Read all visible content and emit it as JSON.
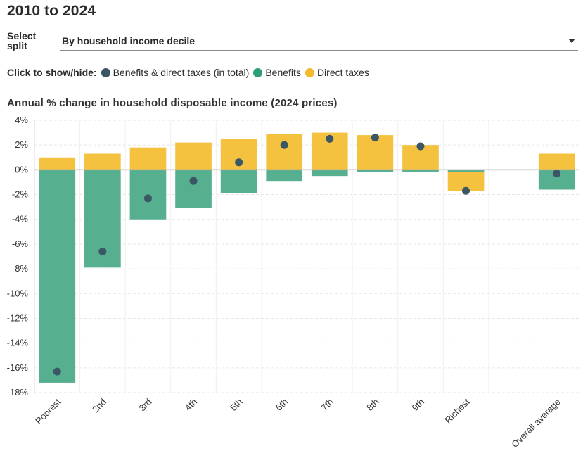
{
  "heading": "2010 to 2024",
  "split": {
    "label": "Select split",
    "value": "By household income decile",
    "chevron_icon": "chevron-down-icon"
  },
  "legend": {
    "prompt": "Click to show/hide:",
    "items": [
      {
        "label": "Benefits & direct taxes (in total)",
        "color": "#3b5766"
      },
      {
        "label": "Benefits",
        "color": "#2e9e78"
      },
      {
        "label": "Direct taxes",
        "color": "#f5b82e"
      }
    ]
  },
  "chart_data": {
    "type": "bar",
    "title": "Annual % change in household disposable income (2024 prices)",
    "categories": [
      "Poorest",
      "2nd",
      "3rd",
      "4th",
      "5th",
      "6th",
      "7th",
      "8th",
      "9th",
      "Richest",
      "",
      "Overall average"
    ],
    "ylim": [
      -18,
      4
    ],
    "yticks": [
      "4%",
      "2%",
      "0%",
      "-2%",
      "-4%",
      "-6%",
      "-8%",
      "-10%",
      "-12%",
      "-14%",
      "-16%",
      "-18%"
    ],
    "stacked": true,
    "grid": true,
    "series": [
      {
        "name": "Benefits",
        "type": "bar",
        "color": "#56b08f",
        "values": [
          -17.2,
          -7.9,
          -4.0,
          -3.1,
          -1.9,
          -0.9,
          -0.5,
          -0.2,
          -0.2,
          -0.2,
          null,
          -1.6
        ]
      },
      {
        "name": "Direct taxes",
        "type": "bar",
        "color": "#f4c23e",
        "values": [
          1.0,
          1.3,
          1.8,
          2.2,
          2.5,
          2.9,
          3.0,
          2.8,
          2.0,
          -1.5,
          null,
          1.3
        ]
      },
      {
        "name": "Benefits & direct taxes (in total)",
        "type": "dot",
        "color": "#3b5766",
        "values": [
          -16.3,
          -6.6,
          -2.3,
          -0.9,
          0.6,
          2.0,
          2.5,
          2.6,
          1.9,
          -1.7,
          null,
          -0.3
        ]
      }
    ]
  }
}
